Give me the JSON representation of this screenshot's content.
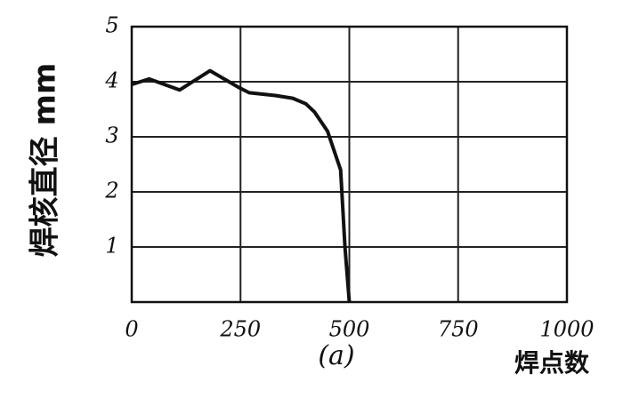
{
  "chart_data": {
    "type": "line",
    "ylabel": "焊核直径 mm",
    "xlabel": "焊点数",
    "caption": "(a)",
    "x": [
      0,
      40,
      110,
      180,
      245,
      270,
      330,
      370,
      400,
      420,
      450,
      480,
      490,
      500
    ],
    "series": [
      {
        "color": "#111111",
        "values": [
          3.95,
          4.05,
          3.85,
          4.2,
          3.9,
          3.8,
          3.75,
          3.7,
          3.6,
          3.45,
          3.1,
          2.4,
          1.0,
          0
        ]
      }
    ],
    "xlim": [
      0,
      1000
    ],
    "ylim": [
      0,
      5
    ],
    "xticks": [
      0,
      250,
      500,
      750,
      1000
    ],
    "yticks": [
      1,
      2,
      3,
      4,
      5
    ],
    "grid": true
  }
}
